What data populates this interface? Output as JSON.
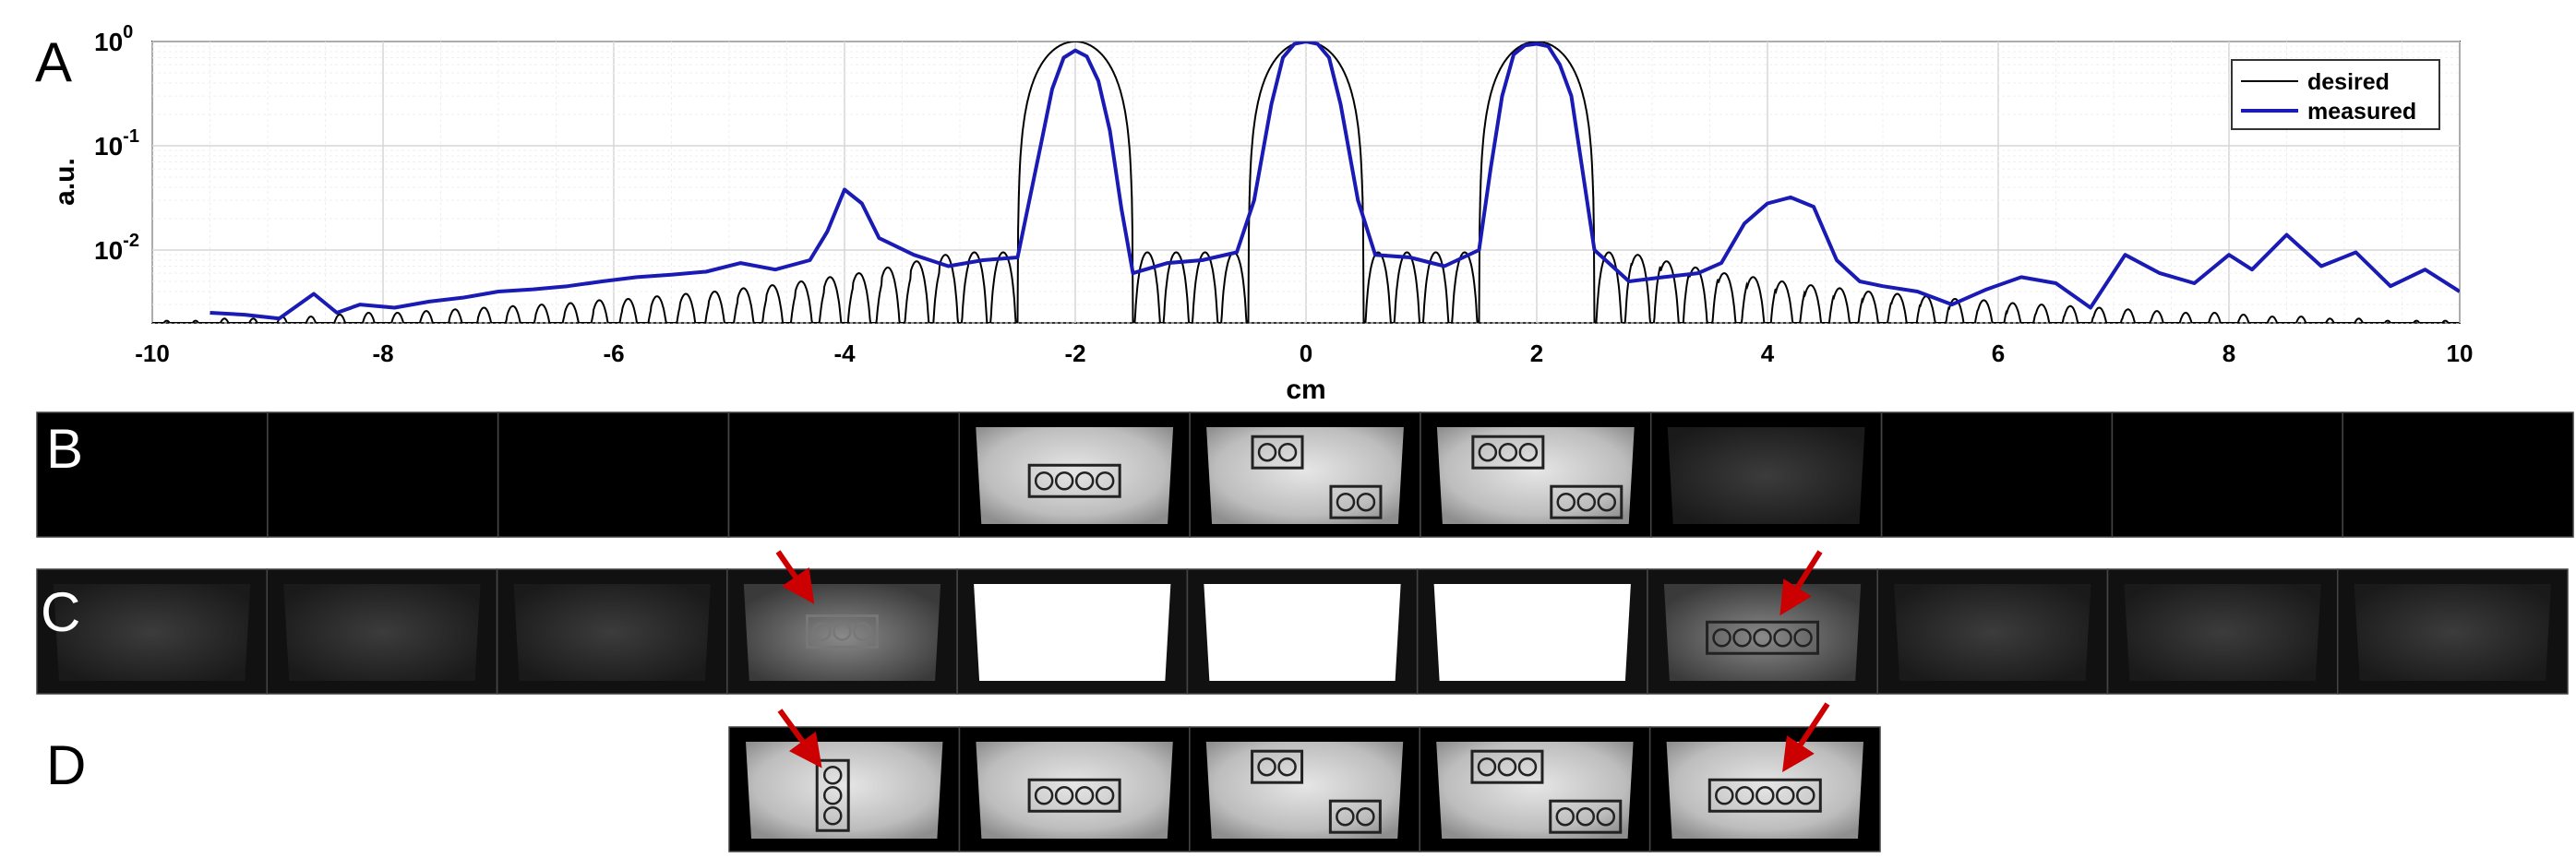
{
  "panels": {
    "a": {
      "label": "A"
    },
    "b": {
      "label": "B"
    },
    "c": {
      "label": "C"
    },
    "d": {
      "label": "D"
    }
  },
  "chart_data": {
    "type": "line",
    "title": "",
    "xlabel": "cm",
    "ylabel": "a.u.",
    "xlim": [
      -10,
      10
    ],
    "ylim": [
      0.002,
      1
    ],
    "y_scale": "log",
    "grid": true,
    "legend_position": "top-right",
    "x_ticks": [
      "-10",
      "-8",
      "-6",
      "-4",
      "-2",
      "0",
      "2",
      "4",
      "6",
      "8",
      "10"
    ],
    "y_ticks": [
      {
        "base": "10",
        "exp": "0"
      },
      {
        "base": "10",
        "exp": "-1"
      },
      {
        "base": "10",
        "exp": "-2"
      }
    ],
    "series": [
      {
        "name": "desired",
        "color": "#000000",
        "peaks": [
          -2,
          0,
          2
        ],
        "x": [
          -9.8,
          -9.55,
          -9.3,
          -9.05,
          -8.8,
          -8.55,
          -8.3,
          -8.05,
          -7.8,
          -7.55,
          -7.3,
          -7.05,
          -6.8,
          -6.55,
          -6.3,
          -6.05,
          -5.8,
          -5.55,
          -5.3,
          -5.05,
          -4.8,
          -4.55,
          -4.3,
          -4.05,
          -3.8,
          -3.55,
          -3.3,
          -3.05,
          -2.8,
          -2.55,
          2.7,
          2.95,
          3.2,
          3.45,
          3.7,
          3.95,
          4.2,
          4.45,
          4.7,
          4.95,
          5.2,
          5.45,
          5.7,
          5.95,
          6.2,
          6.45,
          6.7,
          6.95,
          7.2,
          7.45,
          7.7,
          7.95,
          8.2,
          8.45,
          8.7,
          8.95,
          9.2,
          9.45,
          9.7
        ],
        "y": [
          0.0021,
          0.0021,
          0.0022,
          0.0022,
          0.0023,
          0.0023,
          0.0024,
          0.0025,
          0.0025,
          0.0026,
          0.0027,
          0.0028,
          0.0029,
          0.003,
          0.0031,
          0.0033,
          0.0034,
          0.0036,
          0.0038,
          0.004,
          0.0043,
          0.0046,
          0.005,
          0.0055,
          0.006,
          0.0068,
          0.0078,
          0.009,
          0.0095,
          0.0095,
          0.0095,
          0.009,
          0.0078,
          0.0068,
          0.006,
          0.0055,
          0.005,
          0.0046,
          0.0043,
          0.004,
          0.0038,
          0.0036,
          0.0034,
          0.0033,
          0.0031,
          0.003,
          0.0029,
          0.0028,
          0.0027,
          0.0026,
          0.0025,
          0.0025,
          0.0024,
          0.0023,
          0.0023,
          0.0022,
          0.0022,
          0.0021,
          0.0021
        ],
        "inner_lobes_x": [
          -1.25,
          -0.75,
          -0.28,
          0.28,
          0.75,
          1.25
        ],
        "inner_lobes_y": [
          0.0095,
          0.0095,
          0.0095,
          0.0095,
          0.0095,
          0.0095
        ]
      },
      {
        "name": "measured",
        "color": "#1a1ab4",
        "x": [
          -9.5,
          -9.2,
          -8.9,
          -8.6,
          -8.4,
          -8.2,
          -7.9,
          -7.6,
          -7.3,
          -7.0,
          -6.7,
          -6.4,
          -6.1,
          -5.8,
          -5.5,
          -5.2,
          -4.9,
          -4.6,
          -4.3,
          -4.15,
          -4.0,
          -3.85,
          -3.7,
          -3.4,
          -3.1,
          -2.8,
          -2.5,
          -2.3,
          -2.2,
          -2.1,
          -2.0,
          -1.9,
          -1.8,
          -1.7,
          -1.6,
          -1.5,
          -1.2,
          -0.9,
          -0.6,
          -0.45,
          -0.3,
          -0.2,
          -0.1,
          0.0,
          0.1,
          0.2,
          0.3,
          0.45,
          0.6,
          0.9,
          1.2,
          1.5,
          1.6,
          1.7,
          1.8,
          1.9,
          2.0,
          2.1,
          2.2,
          2.3,
          2.5,
          2.8,
          3.1,
          3.4,
          3.6,
          3.8,
          4.0,
          4.2,
          4.4,
          4.6,
          4.8,
          5.0,
          5.3,
          5.6,
          5.9,
          6.2,
          6.5,
          6.8,
          7.1,
          7.4,
          7.7,
          8.0,
          8.2,
          8.5,
          8.8,
          9.1,
          9.4,
          9.7,
          10.0
        ],
        "y": [
          0.0025,
          0.0024,
          0.0022,
          0.0038,
          0.0025,
          0.003,
          0.0028,
          0.0032,
          0.0035,
          0.004,
          0.0042,
          0.0045,
          0.005,
          0.0055,
          0.0058,
          0.0062,
          0.0075,
          0.0065,
          0.008,
          0.015,
          0.038,
          0.028,
          0.013,
          0.009,
          0.007,
          0.008,
          0.0085,
          0.1,
          0.35,
          0.7,
          0.82,
          0.72,
          0.42,
          0.14,
          0.025,
          0.006,
          0.0075,
          0.008,
          0.0095,
          0.03,
          0.25,
          0.7,
          0.95,
          1.0,
          0.95,
          0.7,
          0.25,
          0.03,
          0.009,
          0.0085,
          0.007,
          0.01,
          0.06,
          0.3,
          0.75,
          0.92,
          0.95,
          0.9,
          0.6,
          0.3,
          0.01,
          0.005,
          0.0055,
          0.006,
          0.0075,
          0.018,
          0.028,
          0.032,
          0.026,
          0.008,
          0.005,
          0.0045,
          0.004,
          0.003,
          0.0042,
          0.0055,
          0.0048,
          0.0028,
          0.009,
          0.006,
          0.0048,
          0.009,
          0.0065,
          0.014,
          0.007,
          0.0095,
          0.0045,
          0.0065,
          0.004
        ]
      }
    ]
  },
  "image_rows": {
    "b": {
      "tiles": 11,
      "bright": [
        4,
        5,
        6
      ],
      "dim": [
        7
      ]
    },
    "c": {
      "tiles": 11,
      "saturated": [
        4,
        5,
        6
      ],
      "medium": [
        3,
        7
      ]
    },
    "d": {
      "tiles": 5
    }
  }
}
